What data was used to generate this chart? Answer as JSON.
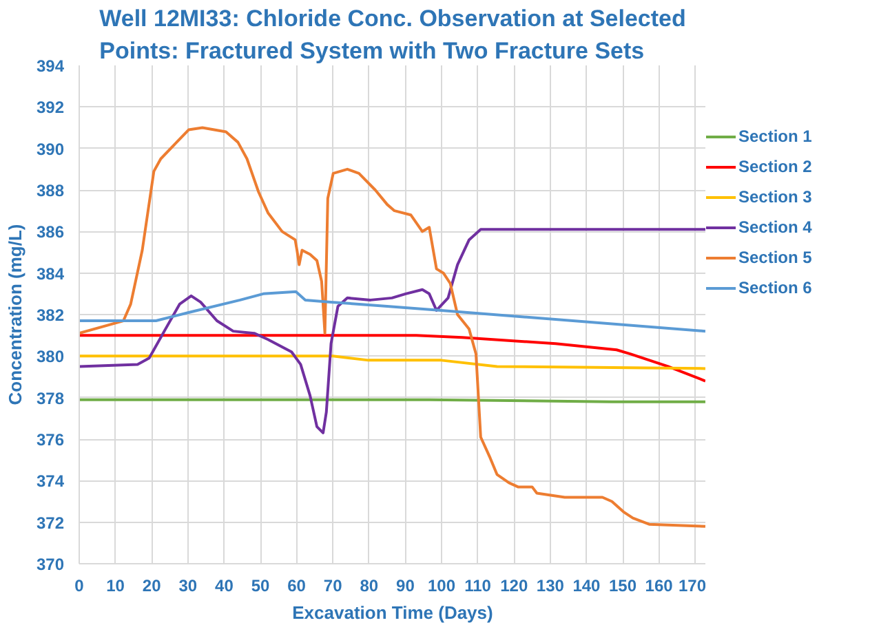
{
  "chart_data": {
    "type": "line",
    "title": "Well 12MI33: Chloride Conc. Observation at Selected Points: Fractured System with Two Fracture Sets",
    "xlabel": "Excavation Time (Days)",
    "ylabel": "Concentration (mg/L)",
    "xlim": [
      0,
      173
    ],
    "ylim": [
      370,
      394
    ],
    "xticks": [
      0,
      10,
      20,
      30,
      40,
      50,
      60,
      70,
      80,
      90,
      100,
      110,
      120,
      130,
      140,
      150,
      160,
      170
    ],
    "yticks": [
      370,
      372,
      374,
      376,
      378,
      380,
      382,
      384,
      386,
      388,
      390,
      392,
      394
    ],
    "grid": true,
    "legend": "right",
    "marker": "none",
    "line_style": "solid",
    "series": [
      {
        "name": "Section 1",
        "color": "#70ad47",
        "x": [
          0,
          50,
          96.6,
          147,
          172.8
        ],
        "values": [
          377.9,
          377.9,
          377.9,
          377.8,
          377.8
        ]
      },
      {
        "name": "Section 2",
        "color": "#ff0000",
        "x": [
          0,
          75,
          93,
          105.7,
          131.5,
          148.3,
          152.2,
          162.5,
          172.8
        ],
        "values": [
          381.0,
          381.0,
          381.0,
          380.9,
          380.6,
          380.3,
          380.1,
          379.5,
          378.8
        ]
      },
      {
        "name": "Section 3",
        "color": "#ffc000",
        "x": [
          0,
          70,
          79.8,
          99.9,
          115.3,
          172.8
        ],
        "values": [
          380.0,
          380.0,
          379.8,
          379.8,
          379.5,
          379.4
        ]
      },
      {
        "name": "Section 4",
        "color": "#7030a0",
        "x": [
          0,
          16.1,
          19.3,
          23.8,
          27.7,
          30.9,
          33.5,
          38,
          42.5,
          48.3,
          52.1,
          58.6,
          61.1,
          63.7,
          65.6,
          67.3,
          68.2,
          69.5,
          71.4,
          74,
          80.4,
          86.3,
          90.1,
          94.7,
          96.6,
          98.6,
          101.8,
          104.4,
          107.6,
          110.8,
          118.6,
          172.8
        ],
        "values": [
          379.5,
          379.6,
          379.9,
          381.3,
          382.5,
          382.9,
          382.6,
          381.7,
          381.2,
          381.1,
          380.8,
          380.2,
          379.6,
          378.1,
          376.6,
          376.3,
          377.3,
          380.6,
          382.4,
          382.8,
          382.7,
          382.8,
          383.0,
          383.2,
          383.0,
          382.2,
          382.8,
          384.4,
          385.6,
          386.1,
          386.1,
          386.1
        ]
      },
      {
        "name": "Section 5",
        "color": "#ed7d31",
        "x": [
          0,
          12.2,
          14.2,
          17.4,
          20.6,
          22.5,
          30.2,
          34,
          40.5,
          43.8,
          46.3,
          49.5,
          52.1,
          56,
          59.6,
          60.1,
          60.7,
          61.5,
          63.7,
          65.6,
          66.9,
          67.8,
          68.6,
          70.1,
          74,
          77.2,
          81.7,
          85,
          87,
          91.5,
          94.7,
          96.6,
          98.6,
          100.5,
          102.4,
          104.4,
          107.6,
          109.5,
          110.8,
          113.4,
          115.3,
          118.6,
          121.1,
          125,
          126.3,
          134,
          144.4,
          147,
          150.2,
          152.8,
          157.3,
          172.8
        ],
        "values": [
          381.1,
          381.7,
          382.5,
          385.1,
          388.9,
          389.5,
          390.9,
          391.0,
          390.8,
          390.3,
          389.5,
          387.9,
          386.9,
          386.0,
          385.6,
          385.1,
          384.4,
          385.1,
          384.9,
          384.6,
          383.6,
          381.1,
          387.6,
          388.8,
          389.0,
          388.8,
          388.0,
          387.3,
          387.0,
          386.8,
          386.0,
          386.2,
          384.2,
          384.0,
          383.5,
          382.0,
          381.3,
          380.1,
          376.1,
          375.1,
          374.3,
          373.9,
          373.7,
          373.7,
          373.4,
          373.2,
          373.2,
          373.0,
          372.5,
          372.2,
          371.9,
          371.8
        ]
      },
      {
        "name": "Section 6",
        "color": "#5b9bd5",
        "x": [
          0,
          21.2,
          30.2,
          44.4,
          50.8,
          59.8,
          62.4,
          69.5,
          85,
          99.9,
          172.8
        ],
        "values": [
          381.7,
          381.7,
          382.1,
          382.7,
          383.0,
          383.1,
          382.7,
          382.6,
          382.4,
          382.2,
          381.2
        ]
      }
    ]
  }
}
